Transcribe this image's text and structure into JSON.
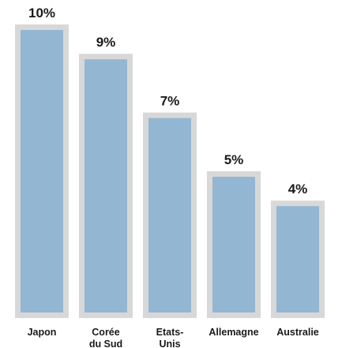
{
  "chart_data": {
    "type": "bar",
    "categories": [
      [
        "Japon"
      ],
      [
        "Corée",
        "du Sud"
      ],
      [
        "Etats-",
        "Unis"
      ],
      [
        "Allemagne"
      ],
      [
        "Australie"
      ]
    ],
    "values": [
      10,
      9,
      7,
      5,
      4
    ],
    "value_labels": [
      "10%",
      "9%",
      "7%",
      "5%",
      "4%"
    ],
    "ylim": [
      0,
      10
    ],
    "grid": false,
    "colors": {
      "bar_fill": "#93b6d2",
      "bar_border": "#d8d8d8"
    }
  }
}
